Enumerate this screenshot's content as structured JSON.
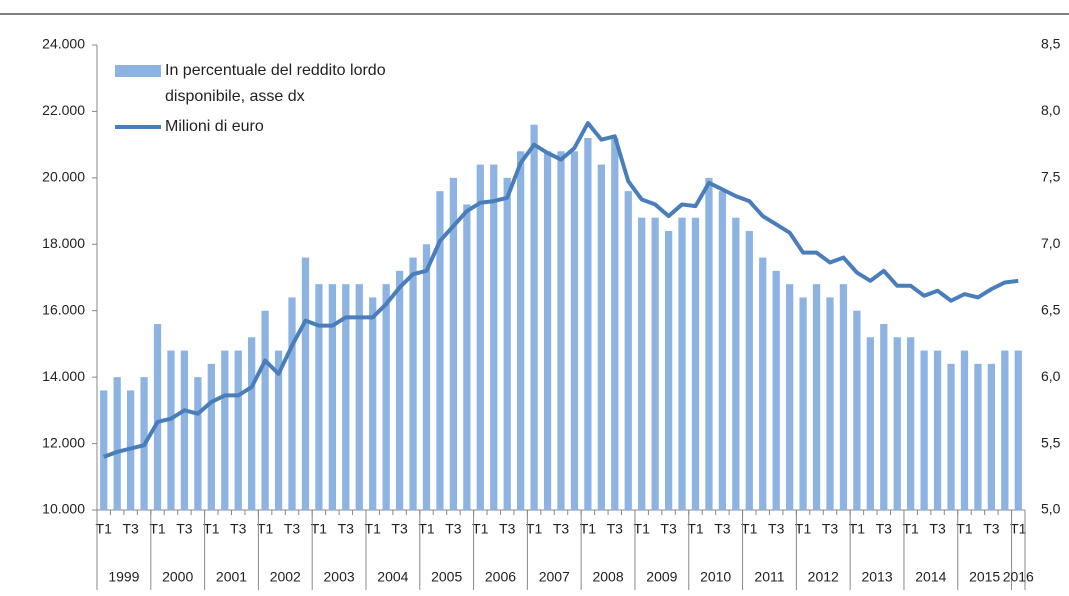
{
  "chart_data": {
    "type": "combo",
    "categories": [
      "T1",
      null,
      "T3",
      null,
      "T1",
      null,
      "T3",
      null,
      "T1",
      null,
      "T3",
      null,
      "T1",
      null,
      "T3",
      null,
      "T1",
      null,
      "T3",
      null,
      "T1",
      null,
      "T3",
      null,
      "T1",
      null,
      "T3",
      null,
      "T1",
      null,
      "T3",
      null,
      "T1",
      null,
      "T3",
      null,
      "T1",
      null,
      "T3",
      null,
      "T1",
      null,
      "T3",
      null,
      "T1",
      null,
      "T3",
      null,
      "T1",
      null,
      "T3",
      null,
      "T1",
      null,
      "T3",
      null,
      "T1",
      null,
      "T3",
      null,
      "T1",
      null,
      "T3",
      null,
      "T1",
      null,
      "T3",
      null,
      "T1"
    ],
    "years": [
      "1999",
      "2000",
      "2001",
      "2002",
      "2003",
      "2004",
      "2005",
      "2006",
      "2007",
      "2008",
      "2009",
      "2010",
      "2011",
      "2012",
      "2013",
      "2014",
      "2015",
      "2016"
    ],
    "series": [
      {
        "name": "In percentuale del reddito lordo disponibile, asse dx",
        "type": "bar",
        "axis": "y2",
        "color": "#8db3e2",
        "values": [
          5.9,
          6.0,
          5.9,
          6.0,
          6.4,
          6.2,
          6.2,
          6.0,
          6.1,
          6.2,
          6.2,
          6.3,
          6.5,
          6.2,
          6.6,
          6.9,
          6.7,
          6.7,
          6.7,
          6.7,
          6.6,
          6.7,
          6.8,
          6.9,
          7.0,
          7.4,
          7.5,
          7.3,
          7.6,
          7.6,
          7.5,
          7.7,
          7.9,
          7.7,
          7.7,
          7.7,
          7.8,
          7.6,
          7.8,
          7.4,
          7.2,
          7.2,
          7.1,
          7.2,
          7.2,
          7.5,
          7.4,
          7.2,
          7.1,
          6.9,
          6.8,
          6.7,
          6.6,
          6.7,
          6.6,
          6.7,
          6.5,
          6.3,
          6.4,
          6.3,
          6.3,
          6.2,
          6.2,
          6.1,
          6.2,
          6.1,
          6.1,
          6.2,
          6.2
        ]
      },
      {
        "name": "Milioni di euro",
        "type": "line",
        "axis": "y",
        "color": "#4a7ebb",
        "values": [
          11600,
          11750,
          11850,
          11950,
          12650,
          12750,
          13000,
          12900,
          13250,
          13450,
          13450,
          13700,
          14500,
          14100,
          14950,
          15700,
          15550,
          15550,
          15800,
          15800,
          15800,
          16200,
          16700,
          17100,
          17200,
          18100,
          18550,
          19000,
          19250,
          19300,
          19400,
          20450,
          21000,
          20750,
          20550,
          20900,
          21650,
          21150,
          21250,
          19900,
          19350,
          19200,
          18850,
          19200,
          19150,
          19850,
          19650,
          19450,
          19300,
          18850,
          18600,
          18350,
          17750,
          17750,
          17450,
          17600,
          17150,
          16900,
          17200,
          16750,
          16750,
          16450,
          16600,
          16300,
          16500,
          16400,
          16650,
          16850,
          16900
        ]
      }
    ],
    "ylim": [
      10000,
      24000
    ],
    "yticks": [
      {
        "value": 10000,
        "label": "10.000"
      },
      {
        "value": 12000,
        "label": "12.000"
      },
      {
        "value": 14000,
        "label": "14.000"
      },
      {
        "value": 16000,
        "label": "16.000"
      },
      {
        "value": 18000,
        "label": "18.000"
      },
      {
        "value": 20000,
        "label": "20.000"
      },
      {
        "value": 22000,
        "label": "22.000"
      },
      {
        "value": 24000,
        "label": "24.000"
      }
    ],
    "y2lim": [
      5.0,
      8.5
    ],
    "y2ticks": [
      {
        "value": 5.0,
        "label": "5,0"
      },
      {
        "value": 5.5,
        "label": "5,5"
      },
      {
        "value": 6.0,
        "label": "6,0"
      },
      {
        "value": 6.5,
        "label": "6,5"
      },
      {
        "value": 7.0,
        "label": "7,0"
      },
      {
        "value": 7.5,
        "label": "7,5"
      },
      {
        "value": 8.0,
        "label": "8,0"
      },
      {
        "value": 8.5,
        "label": "8,5"
      }
    ],
    "legend": "top-left",
    "grid": false
  }
}
